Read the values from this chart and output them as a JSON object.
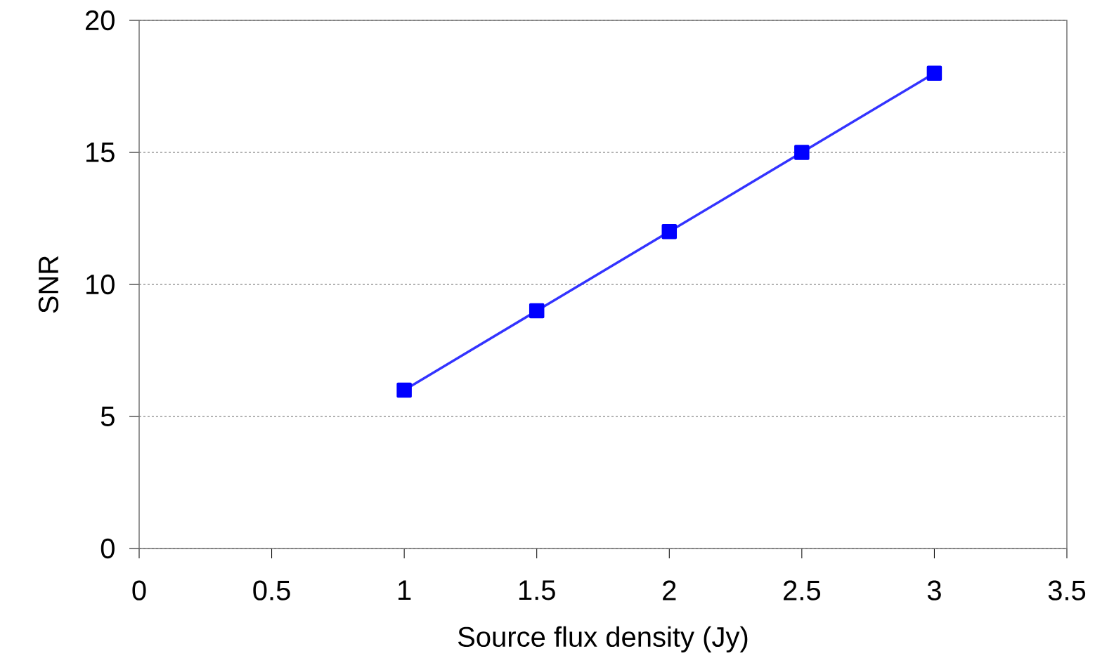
{
  "chart_data": {
    "type": "line",
    "xlabel": "Source flux density (Jy)",
    "ylabel": "SNR",
    "x": [
      1,
      1.5,
      2,
      2.5,
      3
    ],
    "series": [
      {
        "color": "#0000ff",
        "values": [
          6,
          9,
          12,
          15,
          18
        ]
      }
    ],
    "xlim": [
      0,
      3.5
    ],
    "ylim": [
      0,
      20
    ],
    "xticks": [
      0,
      0.5,
      1,
      1.5,
      2,
      2.5,
      3,
      3.5
    ],
    "yticks": [
      0,
      5,
      10,
      15,
      20
    ],
    "grid": "y",
    "marker": "square",
    "line_style": "solid"
  }
}
